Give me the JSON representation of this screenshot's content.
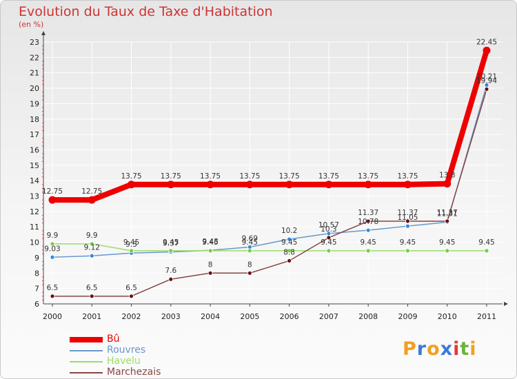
{
  "header": {
    "title": "Evolution du Taux de Taxe d'Habitation",
    "unit": "(en %)"
  },
  "brand": {
    "letters": [
      "P",
      "r",
      "o",
      "x",
      "i",
      "t",
      "i"
    ],
    "colors": [
      "#f0a020",
      "#3a7bd5",
      "#f0a020",
      "#3a7bd5",
      "#e03a3a",
      "#6cb33f",
      "#f0a020"
    ]
  },
  "chart_data": {
    "type": "line",
    "title": "Evolution du Taux de Taxe d'Habitation",
    "ylabel": "(en %)",
    "xlabel": "",
    "ylim": [
      6,
      23
    ],
    "y_ticks": [
      6,
      7,
      8,
      9,
      10,
      11,
      12,
      13,
      14,
      15,
      16,
      17,
      18,
      19,
      20,
      21,
      22,
      23
    ],
    "categories": [
      "2000",
      "2001",
      "2002",
      "2003",
      "2004",
      "2005",
      "2006",
      "2007",
      "2008",
      "2009",
      "2010",
      "2011"
    ],
    "legend_position": "bottom-left",
    "series": [
      {
        "name": "Bû",
        "color": "#ee0000",
        "marker_color": "#ee0000",
        "emphasis": "bold",
        "values": [
          12.75,
          12.75,
          13.75,
          13.75,
          13.75,
          13.75,
          13.75,
          13.75,
          13.75,
          13.75,
          13.8,
          22.45
        ],
        "labels": [
          "12.75",
          "12.75",
          "13.75",
          "13.75",
          "13.75",
          "13.75",
          "13.75",
          "13.75",
          "13.75",
          "13.75",
          "13.8",
          "22.45"
        ]
      },
      {
        "name": "Rouvres",
        "color": "#6699cc",
        "marker_color": "#3388dd",
        "emphasis": "normal",
        "values": [
          9.03,
          9.12,
          9.3,
          9.37,
          9.48,
          9.69,
          10.2,
          10.57,
          10.78,
          11.05,
          11.31,
          20.21
        ],
        "labels": [
          "9.03",
          "9.12",
          "9.3",
          "9.37",
          "9.48",
          "9.69",
          "10.2",
          "10.57",
          "10.78",
          "11.05",
          "11.31",
          "20.21"
        ]
      },
      {
        "name": "Havelu",
        "color": "#99dd66",
        "marker_color": "#77cc44",
        "emphasis": "normal",
        "values": [
          9.9,
          9.9,
          9.45,
          9.45,
          9.45,
          9.45,
          9.45,
          9.45,
          9.45,
          9.45,
          9.45,
          9.45
        ],
        "labels": [
          "9.9",
          "9.9",
          "9.45",
          "9.45",
          "9.45",
          "9.45",
          "9.45",
          "9.45",
          "9.45",
          "9.45",
          "9.45",
          "9.45"
        ]
      },
      {
        "name": "Marchezais",
        "color": "#884444",
        "marker_color": "#661111",
        "emphasis": "normal",
        "values": [
          6.5,
          6.5,
          6.5,
          7.6,
          8,
          8,
          8.8,
          10.3,
          11.37,
          11.37,
          11.37,
          19.94
        ],
        "labels": [
          "6.5",
          "6.5",
          "6.5",
          "7.6",
          "8",
          "8",
          "8.8",
          "10.3",
          "11.37",
          "11.37",
          "11.37",
          "19.94"
        ]
      }
    ]
  }
}
